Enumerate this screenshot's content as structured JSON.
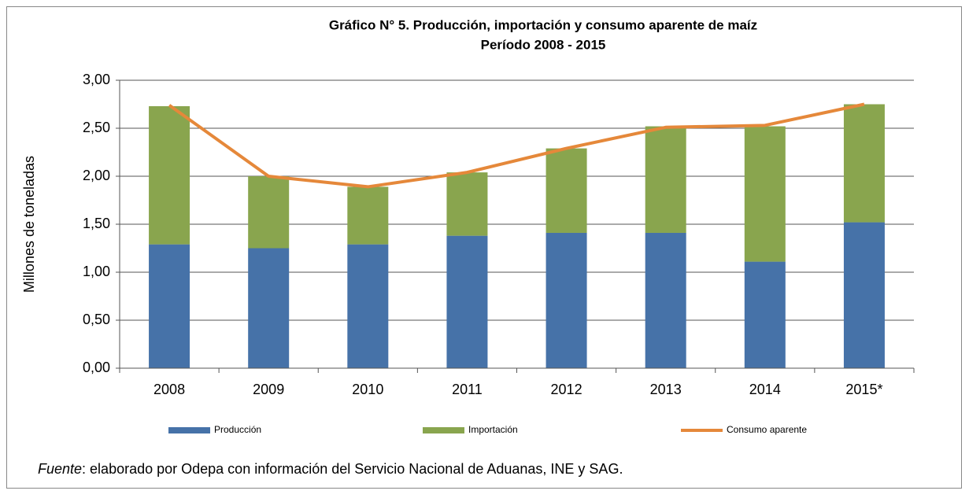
{
  "chart_data": {
    "type": "bar",
    "stacked": true,
    "title": [
      "Gráfico N° 5. Producción, importación y consumo aparente de maíz",
      "Período 2008 - 2015"
    ],
    "y_label": "Millones de toneladas",
    "categories": [
      "2008",
      "2009",
      "2010",
      "2011",
      "2012",
      "2013",
      "2014",
      "2015*"
    ],
    "series": [
      {
        "name": "Producción",
        "type": "bar",
        "color": "#4672a8",
        "values": [
          1.29,
          1.25,
          1.29,
          1.38,
          1.41,
          1.41,
          1.11,
          1.52
        ]
      },
      {
        "name": "Importación",
        "type": "bar",
        "color": "#89a54e",
        "values": [
          1.44,
          0.75,
          0.6,
          0.66,
          0.88,
          1.11,
          1.41,
          1.23
        ]
      },
      {
        "name": "Consumo aparente",
        "type": "line",
        "color": "#e5883a",
        "values": [
          2.74,
          2.0,
          1.89,
          2.04,
          2.29,
          2.51,
          2.53,
          2.75
        ]
      }
    ],
    "ylim": [
      0,
      3
    ],
    "yticks": [
      {
        "value": 0,
        "label": "0,00"
      },
      {
        "value": 0.5,
        "label": "0,50"
      },
      {
        "value": 1,
        "label": "1,00"
      },
      {
        "value": 1.5,
        "label": "1,50"
      },
      {
        "value": 2,
        "label": "2,00"
      },
      {
        "value": 2.5,
        "label": "2,50"
      },
      {
        "value": 3,
        "label": "3,00"
      }
    ],
    "grid": true,
    "legend": "bottom",
    "source_label": "Fuente",
    "source_text": ": elaborado por Odepa con información del Servicio Nacional de Aduanas, INE y SAG."
  }
}
